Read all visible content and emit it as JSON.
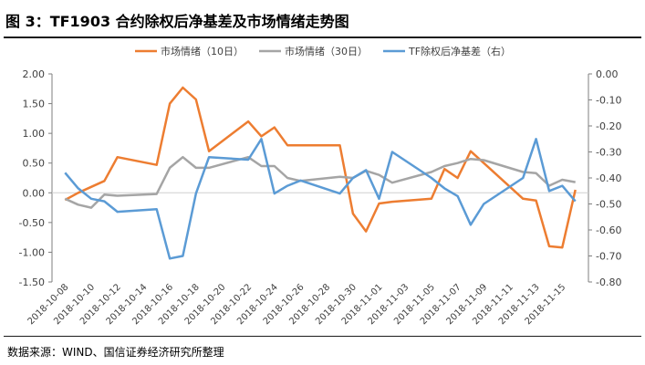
{
  "title": "图 3：TF1903 合约除权后净基差及市场情绪走势图",
  "source": "数据来源：WIND、国信证券经济研究所整理",
  "colors": {
    "s1": "#ED7D31",
    "s2": "#A5A5A5",
    "s3": "#5B9BD5",
    "axis": "#7f7f7f",
    "text": "#404040"
  },
  "chart_data": {
    "type": "line",
    "x_ticks": [
      "2018-10-08",
      "2018-10-10",
      "2018-10-12",
      "2018-10-14",
      "2018-10-16",
      "2018-10-18",
      "2018-10-20",
      "2018-10-22",
      "2018-10-24",
      "2018-10-26",
      "2018-10-28",
      "2018-10-30",
      "2018-11-01",
      "2018-11-03",
      "2018-11-05",
      "2018-11-07",
      "2018-11-09",
      "2018-11-11",
      "2018-11-13",
      "2018-11-15"
    ],
    "xlim": [
      "2018-10-07",
      "2018-11-17"
    ],
    "y_left": {
      "ticks": [
        "2.00",
        "1.50",
        "1.00",
        "0.50",
        "0.00",
        "-0.50",
        "-1.00",
        "-1.50"
      ],
      "ylim": [
        -1.5,
        2.0
      ]
    },
    "y_right": {
      "ticks": [
        "0.00",
        "-0.10",
        "-0.20",
        "-0.30",
        "-0.40",
        "-0.50",
        "-0.60",
        "-0.70",
        "-0.80"
      ],
      "ylim": [
        -0.8,
        0.0
      ]
    },
    "legend_position": "top",
    "series": [
      {
        "name": "市场情绪（10日）",
        "axis": "left",
        "color": "#ED7D31",
        "x": [
          "2018-10-08",
          "2018-10-09",
          "2018-10-10",
          "2018-10-11",
          "2018-10-12",
          "2018-10-15",
          "2018-10-16",
          "2018-10-17",
          "2018-10-18",
          "2018-10-19",
          "2018-10-22",
          "2018-10-23",
          "2018-10-24",
          "2018-10-25",
          "2018-10-29",
          "2018-10-30",
          "2018-10-31",
          "2018-11-01",
          "2018-11-02",
          "2018-11-05",
          "2018-11-06",
          "2018-11-07",
          "2018-11-08",
          "2018-11-09",
          "2018-11-12",
          "2018-11-13",
          "2018-11-14",
          "2018-11-15",
          "2018-11-16"
        ],
        "y": [
          -0.12,
          0.0,
          0.1,
          0.2,
          0.6,
          0.47,
          1.5,
          1.77,
          1.57,
          0.7,
          1.2,
          0.95,
          1.1,
          0.8,
          0.8,
          -0.35,
          -0.65,
          -0.18,
          -0.15,
          -0.1,
          0.4,
          0.25,
          0.7,
          0.5,
          -0.1,
          -0.13,
          -0.9,
          -0.92,
          0.05
        ]
      },
      {
        "name": "市场情绪（30日）",
        "axis": "left",
        "color": "#A5A5A5",
        "x": [
          "2018-10-08",
          "2018-10-09",
          "2018-10-10",
          "2018-10-11",
          "2018-10-12",
          "2018-10-15",
          "2018-10-16",
          "2018-10-17",
          "2018-10-18",
          "2018-10-19",
          "2018-10-22",
          "2018-10-23",
          "2018-10-24",
          "2018-10-25",
          "2018-10-26",
          "2018-10-29",
          "2018-10-30",
          "2018-10-31",
          "2018-11-01",
          "2018-11-02",
          "2018-11-05",
          "2018-11-06",
          "2018-11-07",
          "2018-11-08",
          "2018-11-09",
          "2018-11-12",
          "2018-11-13",
          "2018-11-14",
          "2018-11-15",
          "2018-11-16"
        ],
        "y": [
          -0.1,
          -0.2,
          -0.25,
          -0.03,
          -0.05,
          -0.02,
          0.42,
          0.6,
          0.42,
          0.42,
          0.6,
          0.45,
          0.45,
          0.25,
          0.2,
          0.27,
          0.25,
          0.37,
          0.3,
          0.17,
          0.35,
          0.45,
          0.5,
          0.57,
          0.55,
          0.35,
          0.33,
          0.12,
          0.22,
          0.18
        ]
      },
      {
        "name": "TF除权后净基差（右）",
        "axis": "right",
        "color": "#5B9BD5",
        "x": [
          "2018-10-08",
          "2018-10-09",
          "2018-10-10",
          "2018-10-11",
          "2018-10-12",
          "2018-10-15",
          "2018-10-16",
          "2018-10-17",
          "2018-10-18",
          "2018-10-19",
          "2018-10-22",
          "2018-10-23",
          "2018-10-24",
          "2018-10-25",
          "2018-10-26",
          "2018-10-29",
          "2018-10-30",
          "2018-10-31",
          "2018-11-01",
          "2018-11-02",
          "2018-11-05",
          "2018-11-06",
          "2018-11-07",
          "2018-11-08",
          "2018-11-09",
          "2018-11-12",
          "2018-11-13",
          "2018-11-14",
          "2018-11-15",
          "2018-11-16"
        ],
        "y": [
          -0.38,
          -0.44,
          -0.48,
          -0.49,
          -0.53,
          -0.52,
          -0.71,
          -0.7,
          -0.46,
          -0.32,
          -0.33,
          -0.25,
          -0.46,
          -0.43,
          -0.41,
          -0.46,
          -0.4,
          -0.37,
          -0.48,
          -0.3,
          -0.4,
          -0.44,
          -0.47,
          -0.58,
          -0.5,
          -0.4,
          -0.25,
          -0.45,
          -0.43,
          -0.49
        ]
      }
    ]
  }
}
